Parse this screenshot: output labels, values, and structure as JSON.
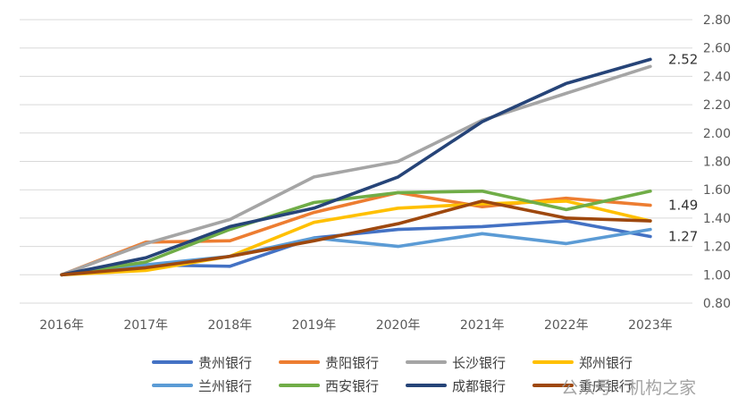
{
  "chart_data": {
    "type": "line",
    "title": "",
    "xlabel": "",
    "ylabel": "",
    "categories": [
      "2016年",
      "2017年",
      "2018年",
      "2019年",
      "2020年",
      "2021年",
      "2022年",
      "2023年"
    ],
    "ylim": [
      0.8,
      2.8
    ],
    "yticks": [
      "0.80",
      "1.00",
      "1.20",
      "1.40",
      "1.60",
      "1.80",
      "2.00",
      "2.20",
      "2.40",
      "2.60",
      "2.80"
    ],
    "grid": true,
    "legend_position": "bottom",
    "series": [
      {
        "name": "贵州银行",
        "color": "#4472C4",
        "values": [
          1.0,
          1.07,
          1.06,
          1.26,
          1.32,
          1.34,
          1.38,
          1.27
        ]
      },
      {
        "name": "贵阳银行",
        "color": "#ED7D31",
        "values": [
          1.0,
          1.23,
          1.24,
          1.44,
          1.58,
          1.48,
          1.54,
          1.49
        ]
      },
      {
        "name": "长沙银行",
        "color": "#A5A5A5",
        "values": [
          1.0,
          1.22,
          1.39,
          1.69,
          1.8,
          2.09,
          2.28,
          2.47
        ]
      },
      {
        "name": "郑州银行",
        "color": "#FFC000",
        "values": [
          1.0,
          1.03,
          1.13,
          1.37,
          1.47,
          1.5,
          1.52,
          1.38
        ]
      },
      {
        "name": "兰州银行",
        "color": "#5B9BD5",
        "values": [
          1.0,
          1.07,
          1.13,
          1.26,
          1.2,
          1.29,
          1.22,
          1.32
        ]
      },
      {
        "name": "西安银行",
        "color": "#70AD47",
        "values": [
          1.0,
          1.09,
          1.32,
          1.51,
          1.58,
          1.59,
          1.46,
          1.59
        ]
      },
      {
        "name": "成都银行",
        "color": "#264478",
        "values": [
          1.0,
          1.12,
          1.34,
          1.47,
          1.69,
          2.08,
          2.35,
          2.52
        ]
      },
      {
        "name": "重庆银行",
        "color": "#9E480E",
        "values": [
          1.0,
          1.05,
          1.13,
          1.24,
          1.36,
          1.52,
          1.4,
          1.38
        ]
      }
    ],
    "annotations": [
      {
        "text": "2.52",
        "series": "成都银行",
        "category": "2023年",
        "value": 2.52
      },
      {
        "text": "1.49",
        "series": "贵阳银行",
        "category": "2023年",
        "value": 1.49
      },
      {
        "text": "1.27",
        "series": "贵州银行",
        "category": "2023年",
        "value": 1.27
      }
    ]
  },
  "watermark": "公众号 · 机构之家"
}
